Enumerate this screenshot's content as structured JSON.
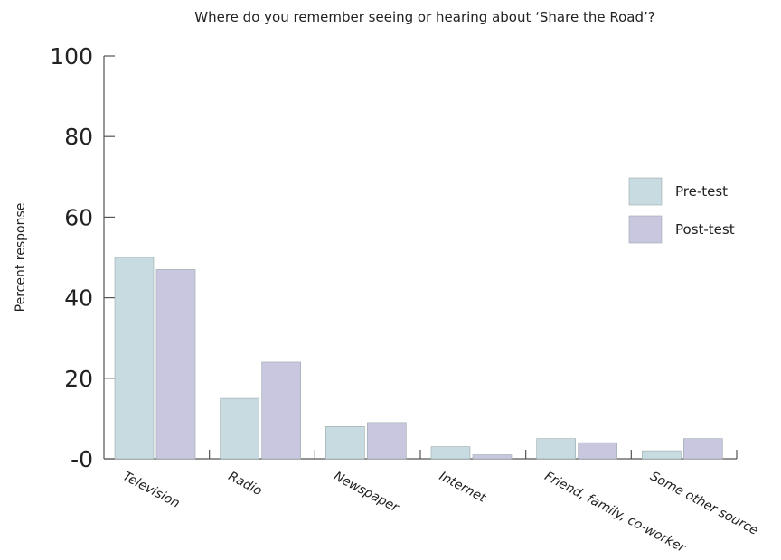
{
  "chart_data": {
    "type": "bar",
    "title": "Where do you remember seeing or hearing about ‘Share the Road’?",
    "ylabel": "Percent response",
    "xlabel": "",
    "ylim": [
      0,
      100
    ],
    "yticks": [
      "100",
      "80",
      "60",
      "40",
      "20",
      "-0"
    ],
    "categories": [
      "Television",
      "Radio",
      "Newspaper",
      "Internet",
      "Friend, family, co-worker",
      "Some other source"
    ],
    "series": [
      {
        "name": "Pre-test",
        "color": "#c8dbe0",
        "values": [
          50,
          15,
          8,
          3,
          5,
          2
        ]
      },
      {
        "name": "Post-test",
        "color": "#c9c6e0",
        "values": [
          47,
          24,
          9,
          1,
          4,
          5
        ]
      }
    ],
    "legend_position": "right",
    "grid": false
  }
}
